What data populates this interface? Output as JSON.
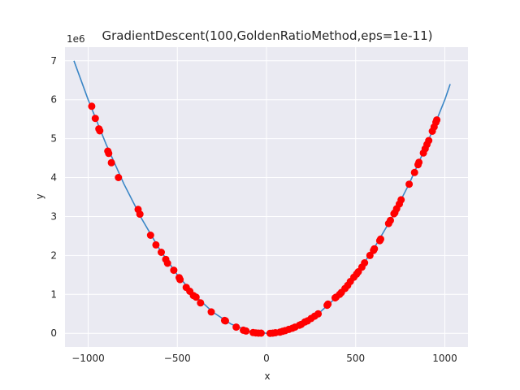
{
  "chart_data": {
    "type": "line",
    "title": "GradientDescent(100,GoldenRatioMethod,eps=1e-11)",
    "xlabel": "x",
    "ylabel": "y",
    "y_scale_label": "1e6",
    "xlim": [
      -1130,
      1130
    ],
    "ylim": [
      -0.35,
      7.35
    ],
    "x_ticks": [
      -1000,
      -500,
      0,
      500,
      1000
    ],
    "x_tick_labels": [
      "−1000",
      "−500",
      "0",
      "500",
      "1000"
    ],
    "y_ticks": [
      0,
      1,
      2,
      3,
      4,
      5,
      6,
      7
    ],
    "y_tick_labels": [
      "0",
      "1",
      "2",
      "3",
      "4",
      "5",
      "6",
      "7"
    ],
    "grid": true,
    "background": "#eaeaf2",
    "series": [
      {
        "kind": "line",
        "color": "#3a86c6",
        "x": [
          -1080,
          -1000,
          -900,
          -800,
          -700,
          -600,
          -500,
          -400,
          -300,
          -200,
          -100,
          0,
          100,
          200,
          300,
          400,
          500,
          600,
          700,
          800,
          900,
          1000,
          1030
        ],
        "y": [
          7.0,
          6.0,
          4.86,
          3.84,
          2.94,
          2.16,
          1.5,
          0.96,
          0.54,
          0.24,
          0.06,
          0.0,
          0.06,
          0.24,
          0.54,
          0.96,
          1.5,
          2.16,
          2.94,
          3.84,
          4.86,
          6.0,
          6.4
        ]
      },
      {
        "kind": "scatter",
        "color": "#ff0000",
        "x": [
          -980,
          -960,
          -940,
          -935,
          -890,
          -885,
          -870,
          -830,
          -720,
          -710,
          -650,
          -620,
          -590,
          -565,
          -555,
          -520,
          -490,
          -485,
          -450,
          -430,
          -410,
          -395,
          -370,
          -310,
          -235,
          -230,
          -170,
          -130,
          -115,
          -75,
          -60,
          -45,
          -30,
          20,
          35,
          50,
          75,
          90,
          105,
          125,
          145,
          160,
          185,
          195,
          215,
          230,
          250,
          270,
          290,
          340,
          345,
          385,
          390,
          410,
          420,
          440,
          455,
          470,
          490,
          505,
          515,
          535,
          550,
          580,
          600,
          605,
          635,
          640,
          685,
          695,
          715,
          720,
          730,
          745,
          755,
          800,
          830,
          850,
          855,
          880,
          890,
          900,
          910,
          930,
          940,
          950,
          955
        ],
        "y": [
          5.83,
          5.52,
          5.25,
          5.2,
          4.68,
          4.62,
          4.38,
          4.0,
          3.18,
          3.06,
          2.52,
          2.27,
          2.08,
          1.9,
          1.8,
          1.62,
          1.43,
          1.38,
          1.18,
          1.08,
          0.97,
          0.93,
          0.78,
          0.55,
          0.33,
          0.32,
          0.16,
          0.08,
          0.06,
          0.02,
          0.01,
          0.005,
          0.005,
          0.0,
          0.005,
          0.015,
          0.03,
          0.05,
          0.07,
          0.1,
          0.13,
          0.16,
          0.21,
          0.23,
          0.29,
          0.32,
          0.38,
          0.44,
          0.5,
          0.72,
          0.75,
          0.91,
          0.93,
          1.0,
          1.05,
          1.15,
          1.23,
          1.33,
          1.44,
          1.52,
          1.58,
          1.7,
          1.81,
          2.0,
          2.13,
          2.17,
          2.38,
          2.42,
          2.82,
          2.9,
          3.07,
          3.1,
          3.2,
          3.32,
          3.43,
          3.83,
          4.13,
          4.33,
          4.39,
          4.63,
          4.74,
          4.85,
          4.95,
          5.19,
          5.3,
          5.42,
          5.48
        ]
      }
    ]
  }
}
